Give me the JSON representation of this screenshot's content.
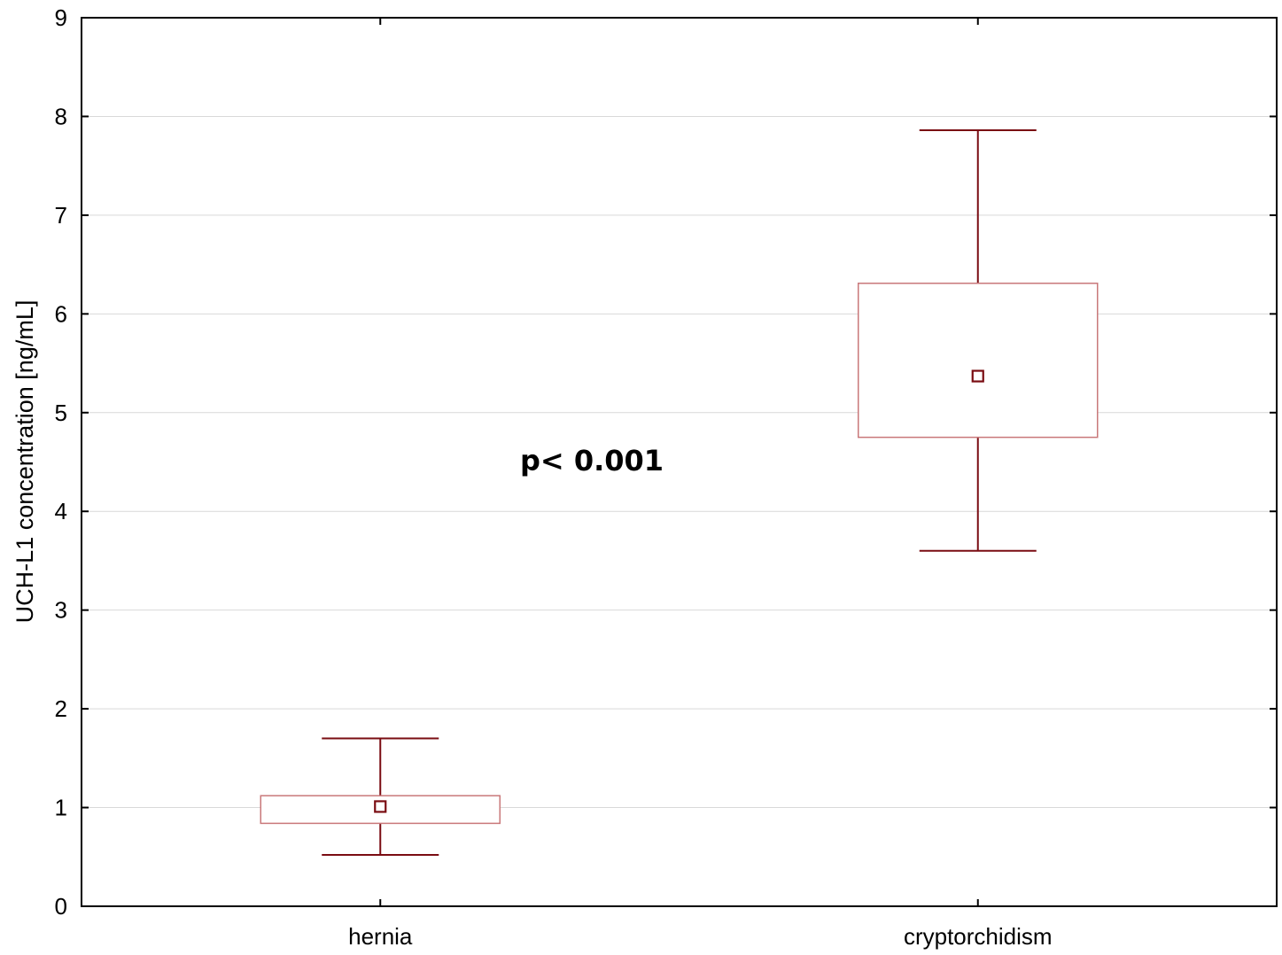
{
  "chart_data": {
    "type": "box",
    "ylabel": "UCH-L1 concentration [ng/mL]",
    "xlabel": "",
    "ylim": [
      0,
      9
    ],
    "yticks": [
      "0",
      "1",
      "2",
      "3",
      "4",
      "5",
      "6",
      "7",
      "8",
      "9"
    ],
    "grid": "horizontal",
    "categories": [
      "hernia",
      "cryptorchidism"
    ],
    "boxes": [
      {
        "category": "hernia",
        "whisker_low": 0.52,
        "box_low": 0.84,
        "median": 1.01,
        "box_high": 1.12,
        "whisker_high": 1.7
      },
      {
        "category": "cryptorchidism",
        "whisker_low": 3.6,
        "box_low": 4.75,
        "median": 5.37,
        "box_high": 6.31,
        "whisker_high": 7.86
      }
    ],
    "annotation": "p< 0.001",
    "colors": {
      "box_edge": "#c9787a",
      "whisker": "#7a0c12",
      "marker": "#7a0c12",
      "grid": "#d9d9d9",
      "axis": "#000000"
    }
  }
}
